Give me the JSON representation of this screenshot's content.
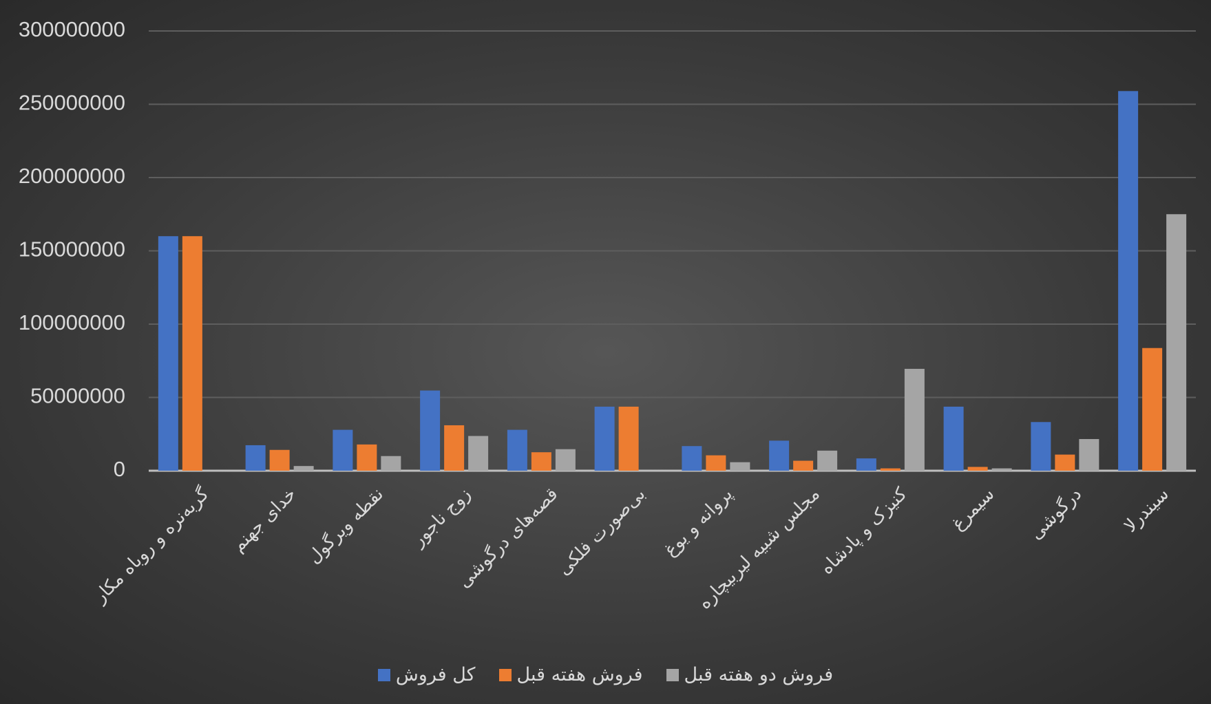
{
  "chart_data": {
    "type": "bar",
    "categories": [
      "گربه‌نره و روباه مکار",
      "خدای جهنم",
      "نقطه ویرگول",
      "زوج ناجور",
      "قصه‌های درگوشی",
      "بی‌صورت فلکی",
      "پروانه و یوغ",
      "مجلس شبیه لیربیچاره",
      "کنیزک و پادشاه",
      "سیمرغ",
      "درگوشی",
      "سیندرلا"
    ],
    "series": [
      {
        "name": "کل فروش",
        "color": "#4472c4",
        "values": [
          160000000,
          17400000,
          27900000,
          54700000,
          27900000,
          43700000,
          16800000,
          20500000,
          8400000,
          43700000,
          33200000,
          259000000
        ]
      },
      {
        "name": "فروش هفته قبل",
        "color": "#ed7d31",
        "values": [
          160000000,
          14200000,
          17900000,
          31000000,
          12600000,
          43700000,
          10500000,
          6800000,
          1600000,
          2600000,
          11000000,
          83700000
        ]
      },
      {
        "name": "فروش دو هفته قبل",
        "color": "#a5a5a5",
        "values": [
          null,
          3200000,
          10000000,
          23700000,
          14700000,
          null,
          5800000,
          13700000,
          69500000,
          1600000,
          21600000,
          175000000
        ]
      }
    ],
    "ylim": [
      0,
      300000000
    ],
    "yticks": [
      0,
      50000000,
      100000000,
      150000000,
      200000000,
      250000000,
      300000000
    ],
    "grid": true
  }
}
